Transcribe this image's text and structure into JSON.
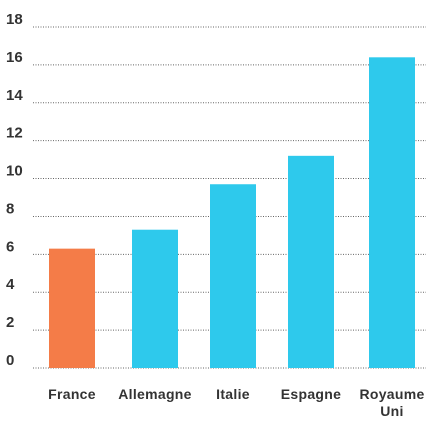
{
  "chart_data": {
    "type": "bar",
    "categories": [
      "France",
      "Allemagne",
      "Italie",
      "Espagne",
      "Royaume Uni"
    ],
    "category_lines": [
      [
        "France"
      ],
      [
        "Allemagne"
      ],
      [
        "Italie"
      ],
      [
        "Espagne"
      ],
      [
        "Royaume",
        "Uni"
      ]
    ],
    "values": [
      6.3,
      7.3,
      9.7,
      11.2,
      16.4
    ],
    "bar_colors": [
      "#f47c48",
      "#2ec9ec",
      "#2ec9ec",
      "#2ec9ec",
      "#2ec9ec"
    ],
    "y_ticks": [
      "0",
      "2",
      "4",
      "6",
      "8",
      "10",
      "12",
      "14",
      "16",
      "18"
    ],
    "ylim": [
      0,
      18
    ],
    "title": "",
    "xlabel": "",
    "ylabel": "",
    "grid": "horizontal dotted",
    "legend": "none"
  }
}
